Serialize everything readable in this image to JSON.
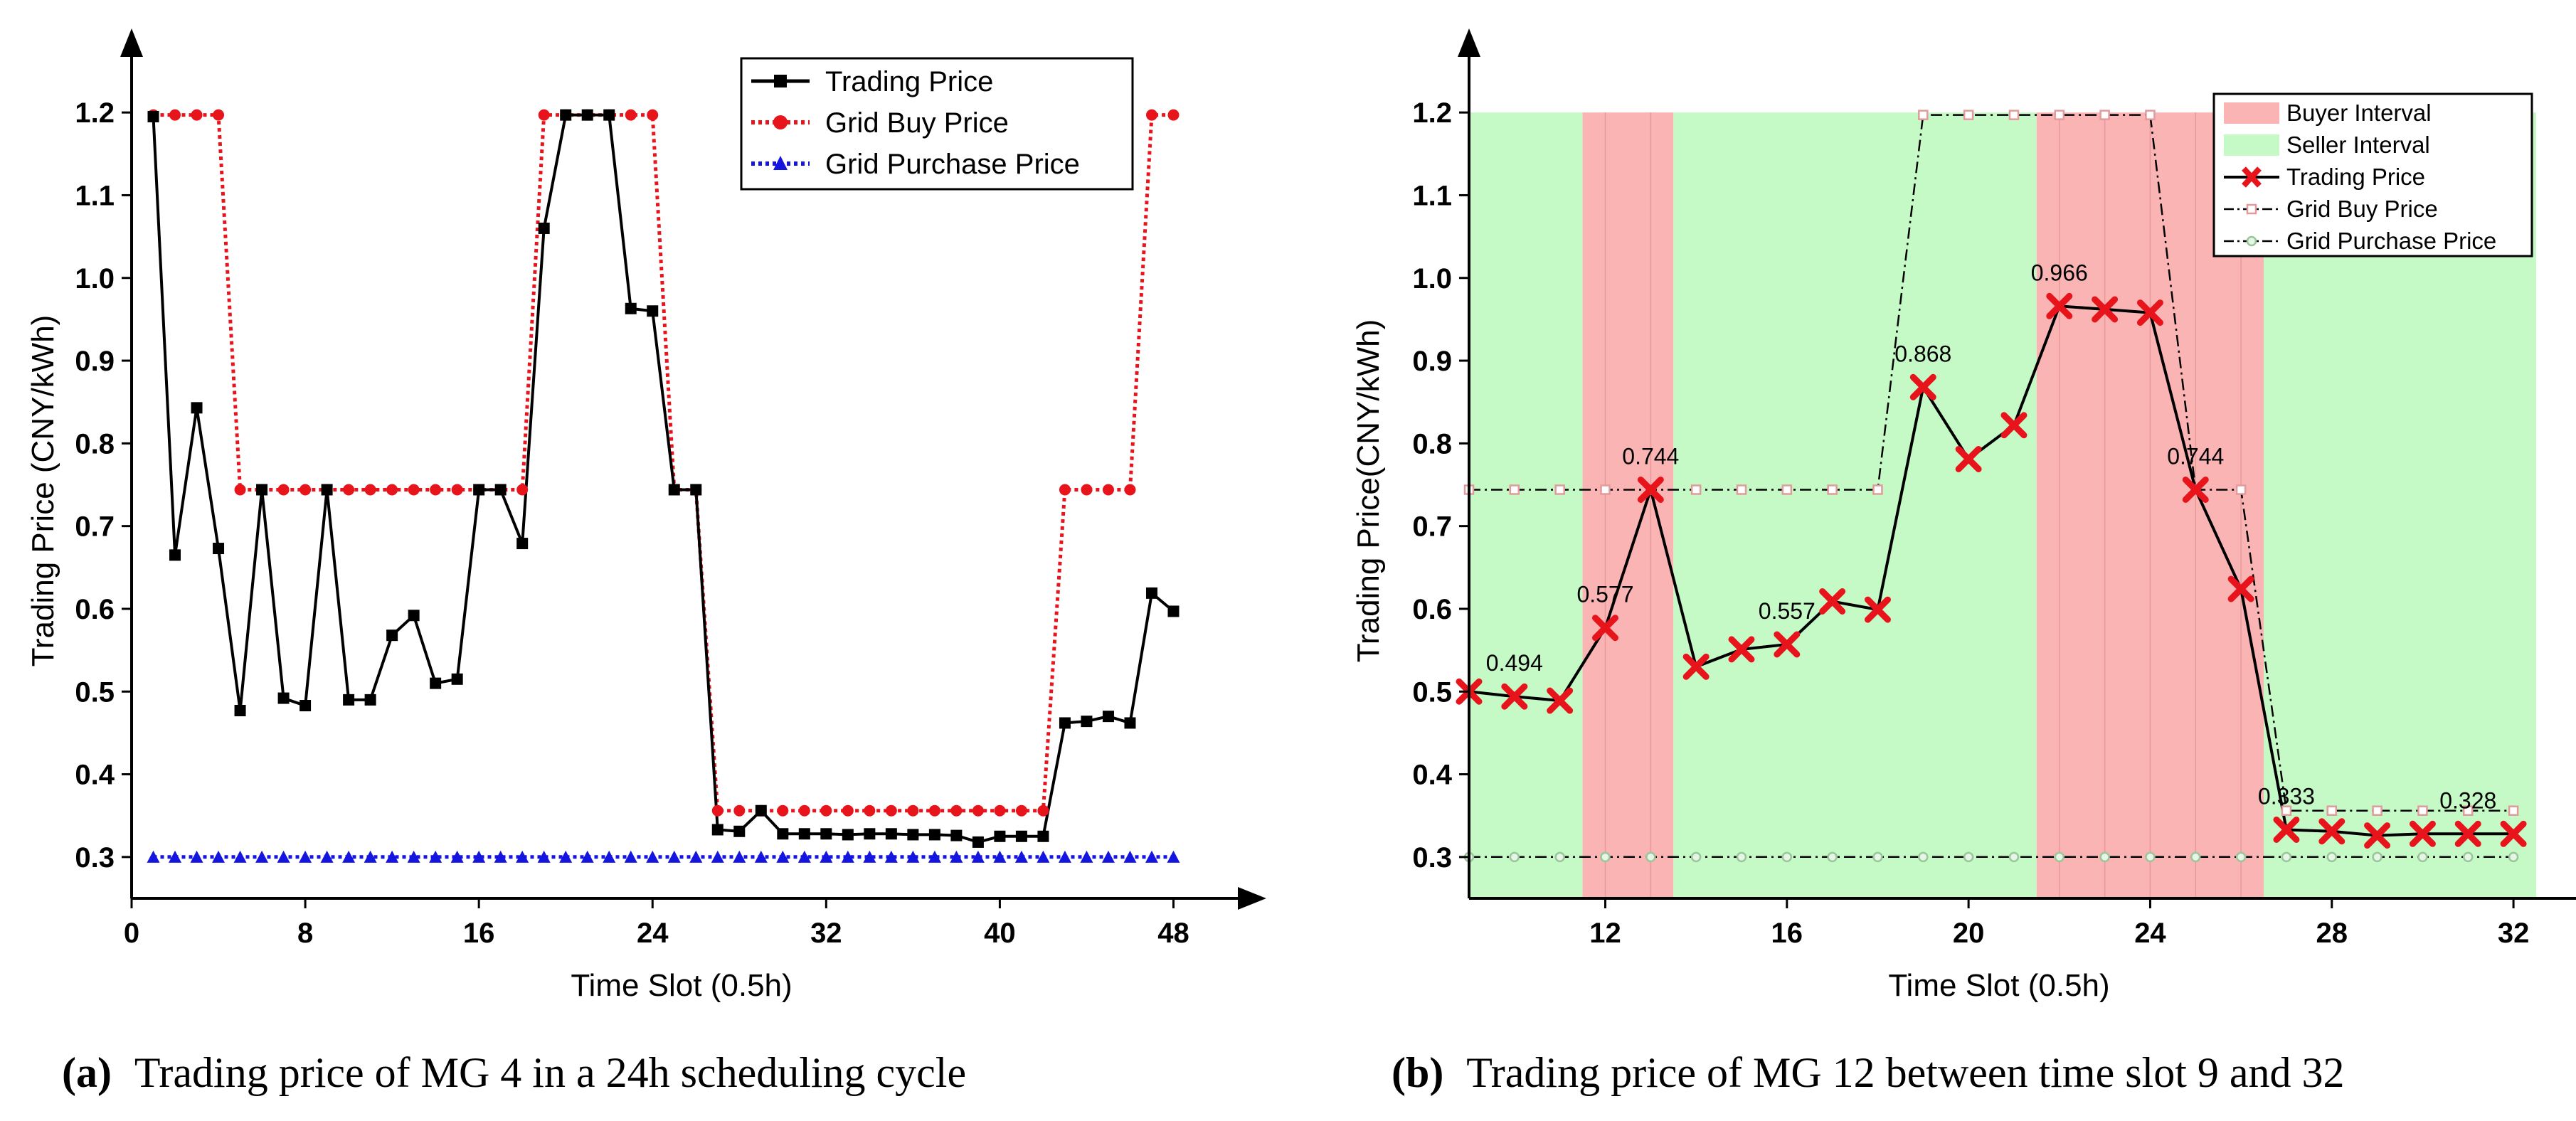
{
  "colors": {
    "trading": "#000000",
    "grid_buy_a": "#e8141c",
    "grid_purchase_a": "#1515e0",
    "buyer_interval": "#f9b4b3",
    "seller_interval": "#c5f9c5",
    "trading_marker_b": "#e8141c",
    "grid_line_b": "#000000"
  },
  "chart_data": [
    {
      "type": "line",
      "panel": "a",
      "caption_label": "(a)",
      "caption_text": "Trading price of MG 4 in a 24h scheduling cycle",
      "xlabel": "Time Slot (0.5h)",
      "ylabel": "Trading Price (CNY/kWh)",
      "xlim": [
        0,
        49
      ],
      "ylim": [
        0.25,
        1.25
      ],
      "xticks": [
        0,
        8,
        16,
        24,
        32,
        40,
        48
      ],
      "yticks": [
        0.3,
        0.4,
        0.5,
        0.6,
        0.7,
        0.8,
        0.9,
        1.0,
        1.1,
        1.2
      ],
      "ytick_labels": [
        "0.3",
        "0.4",
        "0.5",
        "0.6",
        "0.7",
        "0.8",
        "0.9",
        "1.0",
        "1.1",
        "1.2"
      ],
      "grid": false,
      "legend_position": "top-right",
      "x": [
        1,
        2,
        3,
        4,
        5,
        6,
        7,
        8,
        9,
        10,
        11,
        12,
        13,
        14,
        15,
        16,
        17,
        18,
        19,
        20,
        21,
        22,
        23,
        24,
        25,
        26,
        27,
        28,
        29,
        30,
        31,
        32,
        33,
        34,
        35,
        36,
        37,
        38,
        39,
        40,
        41,
        42,
        43,
        44,
        45,
        46,
        47,
        48
      ],
      "series": [
        {
          "name": "Trading Price",
          "marker": "square",
          "style": "solid",
          "values": [
            1.195,
            0.665,
            0.843,
            0.673,
            0.477,
            0.744,
            0.492,
            0.483,
            0.744,
            0.49,
            0.49,
            0.568,
            0.592,
            0.51,
            0.515,
            0.744,
            0.744,
            0.679,
            1.06,
            1.197,
            1.197,
            1.197,
            0.963,
            0.96,
            0.744,
            0.744,
            0.333,
            0.331,
            0.356,
            0.328,
            0.328,
            0.328,
            0.327,
            0.328,
            0.328,
            0.327,
            0.327,
            0.326,
            0.318,
            0.325,
            0.325,
            0.325,
            0.462,
            0.464,
            0.47,
            0.462,
            0.619,
            0.597
          ]
        },
        {
          "name": "Grid Buy Price",
          "marker": "circle",
          "style": "dotted",
          "values": [
            1.197,
            1.197,
            1.197,
            1.197,
            0.744,
            0.744,
            0.744,
            0.744,
            0.744,
            0.744,
            0.744,
            0.744,
            0.744,
            0.744,
            0.744,
            0.744,
            0.744,
            0.744,
            1.197,
            1.197,
            1.197,
            1.197,
            1.197,
            1.197,
            0.744,
            0.744,
            0.356,
            0.356,
            0.356,
            0.356,
            0.356,
            0.356,
            0.356,
            0.356,
            0.356,
            0.356,
            0.356,
            0.356,
            0.356,
            0.356,
            0.356,
            0.356,
            0.744,
            0.744,
            0.744,
            0.744,
            1.197,
            1.197
          ]
        },
        {
          "name": "Grid Purchase Price",
          "marker": "triangle",
          "style": "dotted",
          "values": [
            0.3,
            0.3,
            0.3,
            0.3,
            0.3,
            0.3,
            0.3,
            0.3,
            0.3,
            0.3,
            0.3,
            0.3,
            0.3,
            0.3,
            0.3,
            0.3,
            0.3,
            0.3,
            0.3,
            0.3,
            0.3,
            0.3,
            0.3,
            0.3,
            0.3,
            0.3,
            0.3,
            0.3,
            0.3,
            0.3,
            0.3,
            0.3,
            0.3,
            0.3,
            0.3,
            0.3,
            0.3,
            0.3,
            0.3,
            0.3,
            0.3,
            0.3,
            0.3,
            0.3,
            0.3,
            0.3,
            0.3,
            0.3
          ]
        }
      ]
    },
    {
      "type": "line",
      "panel": "b",
      "caption_label": "(b)",
      "caption_text": "Trading price of MG 12 between time slot 9 and 32",
      "xlabel": "Time Slot (0.5h)",
      "ylabel": "Trading Price(CNY/kWh)",
      "xlim": [
        9,
        32.5
      ],
      "ylim": [
        0.25,
        1.25
      ],
      "xticks": [
        12,
        16,
        20,
        24,
        28,
        32
      ],
      "yticks": [
        0.3,
        0.4,
        0.5,
        0.6,
        0.7,
        0.8,
        0.9,
        1.0,
        1.1,
        1.2
      ],
      "ytick_labels": [
        "0.3",
        "0.4",
        "0.5",
        "0.6",
        "0.7",
        "0.8",
        "0.9",
        "1.0",
        "1.1",
        "1.2"
      ],
      "grid": false,
      "legend_position": "top-right",
      "legend_buyer": "Buyer Interval",
      "legend_seller": "Seller Interval",
      "intervals": [
        {
          "type": "seller",
          "from": 9,
          "to": 11.5
        },
        {
          "type": "buyer",
          "from": 11.5,
          "to": 13.5
        },
        {
          "type": "seller",
          "from": 13.5,
          "to": 21.5
        },
        {
          "type": "buyer",
          "from": 21.5,
          "to": 26.5
        },
        {
          "type": "seller",
          "from": 26.5,
          "to": 32.5
        }
      ],
      "x": [
        9,
        10,
        11,
        12,
        13,
        14,
        15,
        16,
        17,
        18,
        19,
        20,
        21,
        22,
        23,
        24,
        25,
        26,
        27,
        28,
        29,
        30,
        31,
        32
      ],
      "series": [
        {
          "name": "Trading Price",
          "marker": "x",
          "style": "solid",
          "values": [
            0.5,
            0.494,
            0.489,
            0.577,
            0.744,
            0.53,
            0.551,
            0.557,
            0.609,
            0.599,
            0.868,
            0.781,
            0.822,
            0.966,
            0.962,
            0.958,
            0.744,
            0.624,
            0.333,
            0.331,
            0.326,
            0.328,
            0.328,
            0.328
          ]
        },
        {
          "name": "Grid Buy Price",
          "marker": "square",
          "style": "dashdot",
          "values": [
            0.744,
            0.744,
            0.744,
            0.744,
            0.744,
            0.744,
            0.744,
            0.744,
            0.744,
            0.744,
            1.197,
            1.197,
            1.197,
            1.197,
            1.197,
            1.197,
            0.744,
            0.744,
            0.356,
            0.356,
            0.356,
            0.356,
            0.356,
            0.356
          ]
        },
        {
          "name": "Grid Purchase Price",
          "marker": "circle",
          "style": "dashdot",
          "values": [
            0.3,
            0.3,
            0.3,
            0.3,
            0.3,
            0.3,
            0.3,
            0.3,
            0.3,
            0.3,
            0.3,
            0.3,
            0.3,
            0.3,
            0.3,
            0.3,
            0.3,
            0.3,
            0.3,
            0.3,
            0.3,
            0.3,
            0.3,
            0.3
          ]
        }
      ],
      "annotations": [
        {
          "x": 10,
          "y": 0.494,
          "text": "0.494"
        },
        {
          "x": 12,
          "y": 0.577,
          "text": "0.577"
        },
        {
          "x": 13,
          "y": 0.744,
          "text": "0.744"
        },
        {
          "x": 16,
          "y": 0.557,
          "text": "0.557"
        },
        {
          "x": 19,
          "y": 0.868,
          "text": "0.868"
        },
        {
          "x": 22,
          "y": 0.966,
          "text": "0.966"
        },
        {
          "x": 25,
          "y": 0.744,
          "text": "0.744"
        },
        {
          "x": 27,
          "y": 0.333,
          "text": "0.333"
        },
        {
          "x": 31,
          "y": 0.328,
          "text": "0.328"
        }
      ]
    }
  ]
}
